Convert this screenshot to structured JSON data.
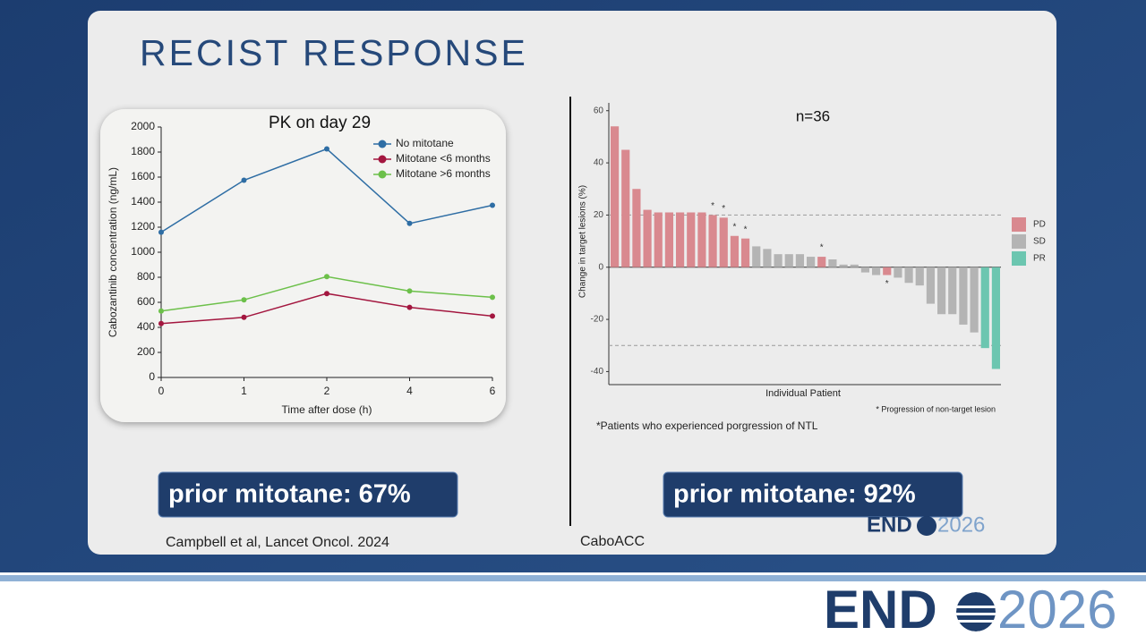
{
  "title": "RECIST RESPONSE",
  "callouts": [
    "prior mitotane: 67%",
    "prior mitotane: 92%"
  ],
  "sources": [
    "Campbell et al, Lancet Oncol. 2024",
    "CaboACC"
  ],
  "logo": {
    "prefix": "END",
    "year": "2026"
  },
  "chart_data": [
    {
      "type": "line",
      "title": "PK on day 29",
      "x_label": "Time after dose (h)",
      "y_label": "Cabozantinib concentration (ng/mL)",
      "categories": [
        "0",
        "1",
        "2",
        "4",
        "6"
      ],
      "series": [
        {
          "name": "No mitotane",
          "color": "#2e6da4",
          "values": [
            1160,
            1575,
            1825,
            1230,
            1375
          ]
        },
        {
          "name": "Mitotane <6 months",
          "color": "#a3163f",
          "values": [
            430,
            480,
            670,
            560,
            490
          ]
        },
        {
          "name": "Mitotane >6 months",
          "color": "#6cc04a",
          "values": [
            530,
            620,
            805,
            690,
            640
          ]
        }
      ],
      "ylim": [
        0,
        2000
      ],
      "yticks": [
        0,
        200,
        400,
        600,
        800,
        1000,
        1200,
        1400,
        1600,
        1800,
        2000
      ],
      "legend": "top-right"
    },
    {
      "type": "waterfall",
      "title": "n=36",
      "x_label": "Individual Patient",
      "y_label": "Change in target lesions (%)",
      "series": [
        {
          "name": "PD",
          "color": "#d9898f",
          "values": [
            54,
            45,
            30,
            22,
            21,
            21,
            21,
            21,
            21,
            20,
            19,
            12,
            11,
            null,
            null,
            null,
            null,
            null,
            null,
            4,
            null,
            null,
            null,
            null,
            null,
            -3,
            null,
            null,
            null,
            null,
            null,
            null,
            null,
            null,
            null,
            null
          ]
        },
        {
          "name": "SD",
          "color": "#b4b4b4",
          "values": [
            null,
            null,
            null,
            null,
            null,
            null,
            null,
            null,
            null,
            null,
            null,
            null,
            null,
            8,
            7,
            5,
            5,
            5,
            4,
            null,
            3,
            1,
            1,
            -2,
            -3,
            null,
            -4,
            -6,
            -7,
            -14,
            -18,
            -18,
            -22,
            -25,
            null,
            null
          ]
        },
        {
          "name": "PR",
          "color": "#6cc6b0",
          "values": [
            null,
            null,
            null,
            null,
            null,
            null,
            null,
            null,
            null,
            null,
            null,
            null,
            null,
            null,
            null,
            null,
            null,
            null,
            null,
            null,
            null,
            null,
            null,
            null,
            null,
            null,
            null,
            null,
            null,
            null,
            null,
            null,
            null,
            null,
            -31,
            -39
          ]
        }
      ],
      "markers": [
        null,
        null,
        null,
        null,
        null,
        null,
        null,
        null,
        null,
        "*",
        "*",
        "*",
        "*",
        null,
        null,
        null,
        null,
        null,
        null,
        "*",
        null,
        null,
        null,
        null,
        null,
        "*",
        null,
        null,
        null,
        null,
        null,
        null,
        null,
        null,
        null,
        null
      ],
      "reference_lines": [
        20,
        -30
      ],
      "ylim": [
        -45,
        63
      ],
      "yticks": [
        -40,
        -20,
        0,
        20,
        40,
        60
      ],
      "legend": "right",
      "footnote": "* Progression of non-target lesion",
      "note": "*Patients who experienced porgression of NTL"
    }
  ]
}
